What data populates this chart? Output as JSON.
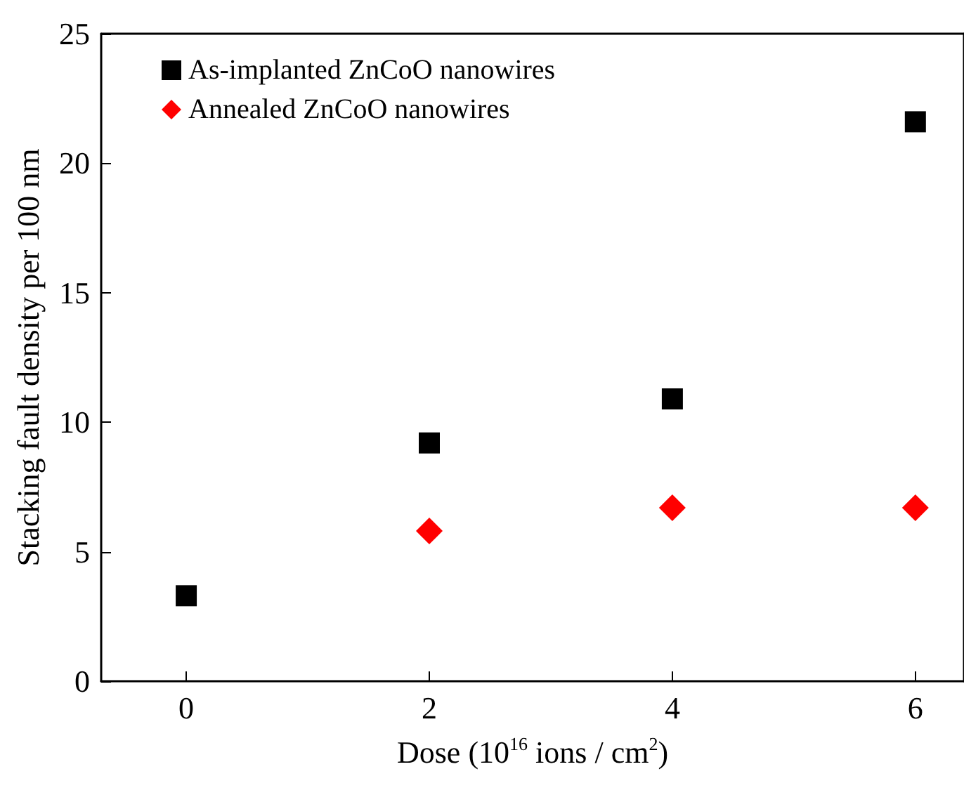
{
  "chart_data": {
    "type": "scatter",
    "xlabel": "Dose (10$^{16}$ ions / cm$^{2}$)",
    "ylabel": "Stacking fault density per 100 nm",
    "xlim": [
      -0.7,
      6.4
    ],
    "xticks": [
      0,
      2,
      4,
      6
    ],
    "ylim": [
      0,
      25
    ],
    "yticks": [
      0,
      5,
      10,
      15,
      20,
      25
    ],
    "grid": false,
    "legend": "top left",
    "series": [
      {
        "name": "As-implanted ZnCoO nanowires",
        "color": "#000000",
        "marker": "square",
        "x": [
          0,
          2,
          4,
          6
        ],
        "values": [
          3.3,
          9.2,
          10.9,
          21.6
        ]
      },
      {
        "name": "Annealed ZnCoO nanowires",
        "color": "#ff0000",
        "marker": "diamond",
        "x": [
          2,
          4,
          6
        ],
        "values": [
          5.8,
          6.7,
          6.7
        ]
      }
    ]
  }
}
